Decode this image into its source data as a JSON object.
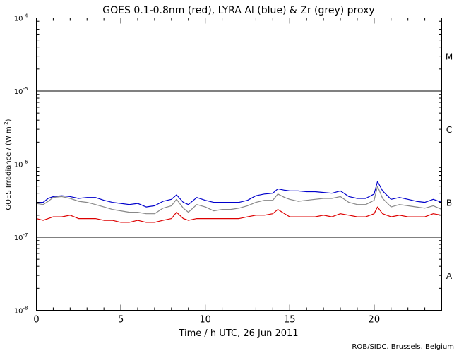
{
  "chart_data": {
    "type": "line",
    "title": "GOES 0.1-0.8nm (red), LYRA Al (blue) & Zr (grey) proxy",
    "xlabel": "Time / h UTC, 26 Jun 2011",
    "ylabel_text": "GOES Irradiance / (W m",
    "ylabel_sup": "-2",
    "ylabel_close": ")",
    "credit": "ROB/SIDC, Brussels, Belgium",
    "xlim": [
      0,
      24
    ],
    "ylim": [
      1e-08,
      0.0001
    ],
    "yscale": "log",
    "x_ticks": [
      0,
      5,
      10,
      15,
      20
    ],
    "x_tick_labels": [
      "0",
      "5",
      "10",
      "15",
      "20"
    ],
    "y_ticks": [
      1e-08,
      1e-07,
      1e-06,
      1e-05,
      0.0001
    ],
    "y_tick_bases": [
      "10",
      "10",
      "10",
      "10",
      "10"
    ],
    "y_tick_exps": [
      "-8",
      "-7",
      "-6",
      "-5",
      "-4"
    ],
    "flare_class_lines": [
      1e-07,
      1e-06,
      1e-05
    ],
    "flare_classes": [
      {
        "label": "A",
        "y": 3e-08
      },
      {
        "label": "B",
        "y": 3e-07
      },
      {
        "label": "C",
        "y": 3e-06
      },
      {
        "label": "M",
        "y": 3e-05
      }
    ],
    "series": [
      {
        "name": "LYRA Al",
        "color": "#0000cc",
        "x": [
          0,
          0.4,
          0.7,
          1,
          1.5,
          2,
          2.5,
          3,
          3.5,
          4,
          4.5,
          5,
          5.5,
          6,
          6.5,
          7,
          7.5,
          8,
          8.3,
          8.7,
          9,
          9.5,
          10,
          10.5,
          11,
          11.5,
          12,
          12.5,
          13,
          13.5,
          14,
          14.3,
          14.7,
          15,
          15.5,
          16,
          16.5,
          17,
          17.5,
          18,
          18.5,
          19,
          19.5,
          20,
          20.2,
          20.5,
          21,
          21.5,
          22,
          22.5,
          23,
          23.5,
          24
        ],
        "y": [
          3e-07,
          3e-07,
          3.4e-07,
          3.6e-07,
          3.7e-07,
          3.6e-07,
          3.4e-07,
          3.5e-07,
          3.5e-07,
          3.2e-07,
          3e-07,
          2.9e-07,
          2.8e-07,
          2.9e-07,
          2.6e-07,
          2.7e-07,
          3.1e-07,
          3.3e-07,
          3.8e-07,
          3e-07,
          2.8e-07,
          3.5e-07,
          3.2e-07,
          3e-07,
          3e-07,
          3e-07,
          3e-07,
          3.2e-07,
          3.7e-07,
          3.9e-07,
          4e-07,
          4.6e-07,
          4.4e-07,
          4.3e-07,
          4.3e-07,
          4.2e-07,
          4.2e-07,
          4.1e-07,
          4e-07,
          4.3e-07,
          3.6e-07,
          3.4e-07,
          3.4e-07,
          3.9e-07,
          5.8e-07,
          4.3e-07,
          3.3e-07,
          3.5e-07,
          3.3e-07,
          3.1e-07,
          3e-07,
          3.3e-07,
          3e-07
        ]
      },
      {
        "name": "LYRA Zr",
        "color": "#888888",
        "x": [
          0,
          0.4,
          0.7,
          1,
          1.5,
          2,
          2.5,
          3,
          3.5,
          4,
          4.5,
          5,
          5.5,
          6,
          6.5,
          7,
          7.5,
          8,
          8.3,
          8.7,
          9,
          9.5,
          10,
          10.5,
          11,
          11.5,
          12,
          12.5,
          13,
          13.5,
          14,
          14.3,
          14.7,
          15,
          15.5,
          16,
          16.5,
          17,
          17.5,
          18,
          18.5,
          19,
          19.5,
          20,
          20.2,
          20.5,
          21,
          21.5,
          22,
          22.5,
          23,
          23.5,
          24
        ],
        "y": [
          2.9e-07,
          2.8e-07,
          3.1e-07,
          3.5e-07,
          3.6e-07,
          3.4e-07,
          3.1e-07,
          3e-07,
          2.8e-07,
          2.6e-07,
          2.4e-07,
          2.3e-07,
          2.2e-07,
          2.2e-07,
          2.1e-07,
          2.1e-07,
          2.5e-07,
          2.7e-07,
          3.3e-07,
          2.5e-07,
          2.2e-07,
          2.8e-07,
          2.6e-07,
          2.3e-07,
          2.4e-07,
          2.4e-07,
          2.5e-07,
          2.7e-07,
          3e-07,
          3.2e-07,
          3.2e-07,
          3.9e-07,
          3.5e-07,
          3.3e-07,
          3.1e-07,
          3.2e-07,
          3.3e-07,
          3.4e-07,
          3.4e-07,
          3.6e-07,
          3e-07,
          2.8e-07,
          2.8e-07,
          3.2e-07,
          5e-07,
          3.4e-07,
          2.6e-07,
          2.8e-07,
          2.7e-07,
          2.6e-07,
          2.5e-07,
          2.7e-07,
          2.4e-07
        ]
      },
      {
        "name": "GOES 0.1-0.8nm",
        "color": "#dd0000",
        "x": [
          0,
          0.4,
          0.7,
          1,
          1.5,
          2,
          2.5,
          3,
          3.5,
          4,
          4.5,
          5,
          5.5,
          6,
          6.5,
          7,
          7.5,
          8,
          8.3,
          8.7,
          9,
          9.5,
          10,
          10.5,
          11,
          11.5,
          12,
          12.5,
          13,
          13.5,
          14,
          14.3,
          14.7,
          15,
          15.5,
          16,
          16.5,
          17,
          17.5,
          18,
          18.5,
          19,
          19.5,
          20,
          20.2,
          20.5,
          21,
          21.5,
          22,
          22.5,
          23,
          23.5,
          24
        ],
        "y": [
          1.8e-07,
          1.7e-07,
          1.8e-07,
          1.9e-07,
          1.9e-07,
          2e-07,
          1.8e-07,
          1.8e-07,
          1.8e-07,
          1.7e-07,
          1.7e-07,
          1.6e-07,
          1.6e-07,
          1.7e-07,
          1.6e-07,
          1.6e-07,
          1.7e-07,
          1.8e-07,
          2.2e-07,
          1.8e-07,
          1.7e-07,
          1.8e-07,
          1.8e-07,
          1.8e-07,
          1.8e-07,
          1.8e-07,
          1.8e-07,
          1.9e-07,
          2e-07,
          2e-07,
          2.1e-07,
          2.4e-07,
          2.1e-07,
          1.9e-07,
          1.9e-07,
          1.9e-07,
          1.9e-07,
          2e-07,
          1.9e-07,
          2.1e-07,
          2e-07,
          1.9e-07,
          1.9e-07,
          2.1e-07,
          2.6e-07,
          2.1e-07,
          1.9e-07,
          2e-07,
          1.9e-07,
          1.9e-07,
          1.9e-07,
          2.1e-07,
          2e-07
        ]
      }
    ]
  }
}
